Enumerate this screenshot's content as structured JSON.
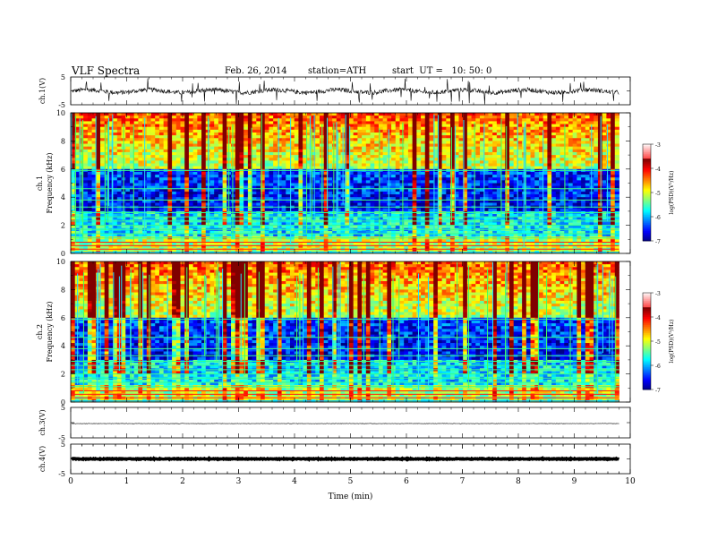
{
  "header": {
    "title": "VLF Spectra",
    "date": "Feb. 26, 2014",
    "station": "station=ATH",
    "start": "start  UT =   10: 50: 0"
  },
  "chart_data": [
    {
      "type": "line",
      "panel": "ch1-waveform",
      "ylabel": "ch.1(V)",
      "yticks": [
        "5",
        "-5"
      ],
      "ylim": [
        -5,
        5
      ],
      "description_series": "noisy trace near 0 V with spikes"
    },
    {
      "type": "heatmap",
      "panel": "ch1-spectrogram",
      "ylabel_line1": "ch.1",
      "ylabel_line2": "Frequency (kHz)",
      "yticks": [
        "0",
        "2",
        "4",
        "6",
        "8",
        "10"
      ],
      "ylim": [
        0,
        10
      ],
      "data_end_min": 9.8,
      "colorbar": {
        "label": "log(PSD)(V²/Hz)",
        "ticks": [
          "-3",
          "-4",
          "-5",
          "-6",
          "-7"
        ],
        "range": [
          -7,
          -3
        ]
      }
    },
    {
      "type": "heatmap",
      "panel": "ch2-spectrogram",
      "ylabel_line1": "ch.2",
      "ylabel_line2": "Frequency (kHz)",
      "yticks": [
        "0",
        "2",
        "4",
        "6",
        "8",
        "10"
      ],
      "ylim": [
        0,
        10
      ],
      "data_end_min": 9.8,
      "colorbar": {
        "label": "log(PSD)(V²/Hz)",
        "ticks": [
          "-3",
          "-4",
          "-5",
          "-6",
          "-7"
        ],
        "range": [
          -7,
          -3
        ]
      }
    },
    {
      "type": "line",
      "panel": "ch3-waveform",
      "ylabel": "ch.3(V)",
      "yticks": [
        "5",
        "-5"
      ],
      "ylim": [
        -5,
        5
      ]
    },
    {
      "type": "line",
      "panel": "ch4-waveform",
      "ylabel": "ch.4(V)",
      "yticks": [
        "5",
        "-5"
      ],
      "ylim": [
        -5,
        5
      ]
    }
  ],
  "xaxis": {
    "label": "Time (min)",
    "ticks": [
      "0",
      "1",
      "2",
      "3",
      "4",
      "5",
      "6",
      "7",
      "8",
      "9",
      "10"
    ],
    "xlim": [
      0,
      10
    ]
  }
}
